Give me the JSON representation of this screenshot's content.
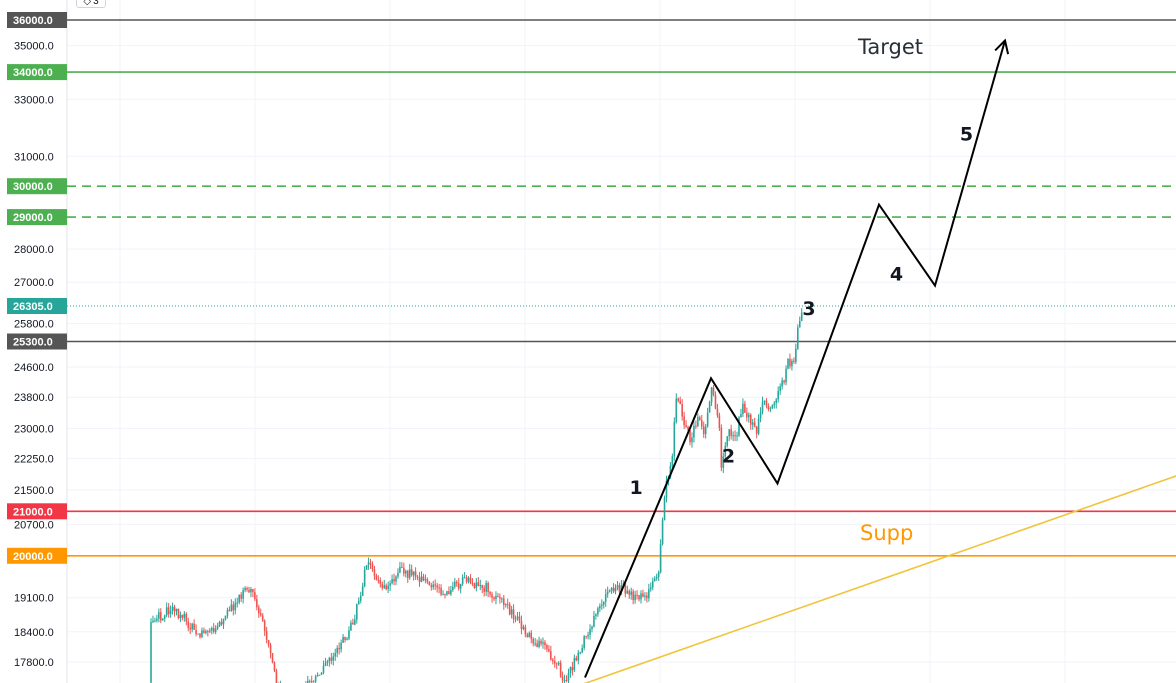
{
  "widget": {
    "icon": "indicator-icon",
    "count": "3"
  },
  "colors": {
    "support_green": "#4caf50",
    "resistance_red": "#f23645",
    "support_orange": "#ff9800",
    "current_teal": "#26a69a",
    "neutral": "#555555",
    "trendline": "#f0c43c",
    "candle_up": "#26a69a",
    "candle_down": "#ef5350"
  },
  "annotations": {
    "target": "Target",
    "supp": "Supp",
    "wave_labels": [
      "1",
      "2",
      "3",
      "4",
      "5"
    ]
  },
  "chart_data": {
    "type": "line",
    "title": "",
    "xlabel": "",
    "ylabel": "",
    "y_scale": "log",
    "ylim": [
      17200,
      36300
    ],
    "grid": true,
    "y_ticks": [
      "17800.0",
      "18400.0",
      "19100.0",
      "20700.0",
      "21500.0",
      "22250.0",
      "23000.0",
      "23800.0",
      "24600.0",
      "25800.0",
      "27000.0",
      "28000.0",
      "31000.0",
      "33000.0",
      "35000.0"
    ],
    "price_levels": [
      {
        "label": "36000.0",
        "value": 36000,
        "style": "solid",
        "color": "#555555"
      },
      {
        "label": "34000.0",
        "value": 34000,
        "style": "solid",
        "color": "#4caf50"
      },
      {
        "label": "30000.0",
        "value": 30000,
        "style": "dashed",
        "color": "#4caf50"
      },
      {
        "label": "29000.0",
        "value": 29000,
        "style": "dashed",
        "color": "#4caf50"
      },
      {
        "label": "26305.0",
        "value": 26305,
        "style": "dotted",
        "color": "#26a69a"
      },
      {
        "label": "25300.0",
        "value": 25300,
        "style": "solid",
        "color": "#555555"
      },
      {
        "label": "21000.0",
        "value": 21000,
        "style": "solid",
        "color": "#f23645"
      },
      {
        "label": "20000.0",
        "value": 20000,
        "style": "solid",
        "color": "#ff9800"
      }
    ],
    "price_series": [
      [
        0.0,
        17400
      ],
      [
        0.03,
        17650
      ],
      [
        0.05,
        18300
      ],
      [
        0.09,
        18700
      ],
      [
        0.12,
        18600
      ],
      [
        0.15,
        18900
      ],
      [
        0.18,
        18500
      ],
      [
        0.2,
        18300
      ],
      [
        0.23,
        18800
      ],
      [
        0.26,
        19300
      ],
      [
        0.28,
        18600
      ],
      [
        0.3,
        17300
      ],
      [
        0.33,
        17100
      ],
      [
        0.36,
        17600
      ],
      [
        0.39,
        18100
      ],
      [
        0.41,
        18600
      ],
      [
        0.43,
        19900
      ],
      [
        0.45,
        19300
      ],
      [
        0.48,
        19700
      ],
      [
        0.51,
        19400
      ],
      [
        0.54,
        19200
      ],
      [
        0.57,
        19500
      ],
      [
        0.6,
        19300
      ],
      [
        0.63,
        18900
      ],
      [
        0.66,
        18300
      ],
      [
        0.68,
        18100
      ],
      [
        0.7,
        17800
      ],
      [
        0.71,
        17450
      ],
      [
        0.73,
        17900
      ],
      [
        0.75,
        18600
      ],
      [
        0.77,
        19100
      ],
      [
        0.79,
        19350
      ],
      [
        0.81,
        19100
      ],
      [
        0.83,
        19150
      ],
      [
        0.845,
        19600
      ],
      [
        0.855,
        21500
      ],
      [
        0.865,
        22300
      ],
      [
        0.87,
        23800
      ],
      [
        0.88,
        23300
      ],
      [
        0.89,
        22700
      ],
      [
        0.9,
        23200
      ],
      [
        0.91,
        22900
      ],
      [
        0.92,
        24000
      ],
      [
        0.93,
        23400
      ],
      [
        0.935,
        22100
      ],
      [
        0.945,
        22900
      ],
      [
        0.955,
        22700
      ],
      [
        0.965,
        23600
      ],
      [
        0.975,
        23300
      ],
      [
        0.985,
        22900
      ],
      [
        0.995,
        23700
      ],
      [
        1.005,
        23500
      ],
      [
        1.02,
        24000
      ],
      [
        1.03,
        24700
      ],
      [
        1.04,
        24900
      ],
      [
        1.045,
        25800
      ],
      [
        1.05,
        26305
      ]
    ],
    "wave_path": {
      "x": [
        0.74,
        0.92,
        1.015,
        1.16,
        1.24,
        1.34
      ],
      "y": [
        17500,
        24300,
        21650,
        29400,
        26900,
        35200
      ],
      "labels": [
        {
          "text": "1",
          "x": 0.813,
          "y": 21400
        },
        {
          "text": "2",
          "x": 0.945,
          "y": 22150
        },
        {
          "text": "3",
          "x": 1.06,
          "y": 26050
        },
        {
          "text": "4",
          "x": 1.185,
          "y": 27050
        },
        {
          "text": "5",
          "x": 1.285,
          "y": 31550
        }
      ]
    },
    "trendline": {
      "x": [
        0.7,
        1.68
      ],
      "y": [
        17200,
        22400
      ]
    }
  }
}
